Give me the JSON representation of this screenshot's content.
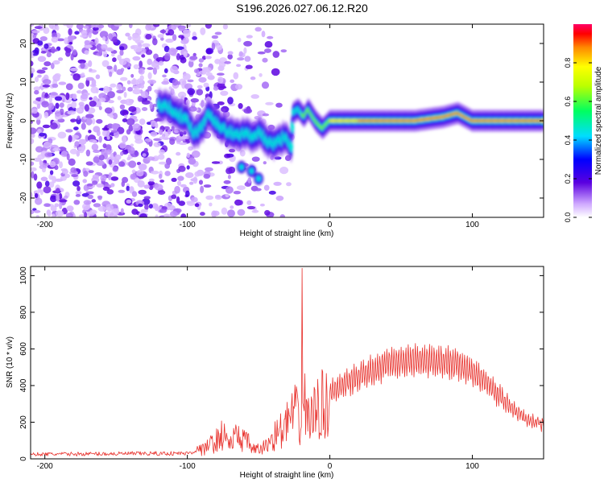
{
  "figure": {
    "title": "S196.2026.027.06.12.R20"
  },
  "chart_data": [
    {
      "type": "heatmap",
      "title": "S196.2026.027.06.12.R20",
      "xlabel": "Height of straight line (km)",
      "ylabel": "Frequency (Hz)",
      "xlim": [
        -210,
        150
      ],
      "ylim": [
        -25,
        25
      ],
      "x_ticks": [
        -200,
        -100,
        0,
        100
      ],
      "x_tick_labels": [
        "-200",
        "-100",
        "0",
        "100"
      ],
      "y_ticks": [
        -20,
        -10,
        0,
        10,
        20
      ],
      "y_tick_labels": [
        "-20",
        "-10",
        "0",
        "10",
        "20"
      ],
      "colorbar": {
        "label": "Normalized spectral amplitude",
        "range": [
          0,
          1
        ],
        "ticks": [
          0.0,
          0.2,
          0.4,
          0.6,
          0.8
        ],
        "tick_labels": [
          "0.0",
          "0.2",
          "0.4",
          "0.6",
          "0.8"
        ]
      },
      "ridge": {
        "description_points_km_hz": [
          [
            -118,
            4
          ],
          [
            -110,
            3
          ],
          [
            -100,
            0
          ],
          [
            -95,
            -3
          ],
          [
            -90,
            -2
          ],
          [
            -85,
            2
          ],
          [
            -80,
            0
          ],
          [
            -75,
            -2
          ],
          [
            -70,
            -3
          ],
          [
            -65,
            -4
          ],
          [
            -60,
            -3
          ],
          [
            -55,
            -4
          ],
          [
            -50,
            -3
          ],
          [
            -45,
            -5
          ],
          [
            -40,
            -6
          ],
          [
            -35,
            -5
          ],
          [
            -30,
            -4
          ],
          [
            -27,
            -7
          ],
          [
            -26,
            2
          ],
          [
            -22,
            3
          ],
          [
            -18,
            1
          ],
          [
            -15,
            3
          ],
          [
            -10,
            0
          ],
          [
            -5,
            -2
          ],
          [
            0,
            0
          ],
          [
            10,
            0
          ],
          [
            20,
            0
          ],
          [
            40,
            0
          ],
          [
            60,
            0
          ],
          [
            80,
            1
          ],
          [
            90,
            2
          ],
          [
            100,
            0
          ],
          [
            120,
            0
          ],
          [
            140,
            0
          ],
          [
            150,
            0
          ]
        ],
        "branch_points_km_hz": [
          [
            -62,
            -12
          ],
          [
            -55,
            -13
          ],
          [
            -50,
            -15
          ]
        ]
      }
    },
    {
      "type": "line",
      "xlabel": "Height of straight line (km)",
      "ylabel": "SNR (10 * v/v)",
      "xlim": [
        -210,
        150
      ],
      "ylim": [
        0,
        1050
      ],
      "x_ticks": [
        -200,
        -100,
        0,
        100
      ],
      "x_tick_labels": [
        "-200",
        "-100",
        "0",
        "100"
      ],
      "y_ticks": [
        0,
        200,
        400,
        600,
        800,
        1000
      ],
      "y_tick_labels": [
        "0",
        "200",
        "400",
        "600",
        "800",
        "1000"
      ],
      "series": [
        {
          "name": "SNR",
          "color": "#e8322d",
          "envelope_km_snr": [
            [
              -210,
              25
            ],
            [
              -150,
              28
            ],
            [
              -100,
              30
            ],
            [
              -90,
              60
            ],
            [
              -80,
              130
            ],
            [
              -75,
              180
            ],
            [
              -70,
              110
            ],
            [
              -65,
              170
            ],
            [
              -58,
              120
            ],
            [
              -52,
              60
            ],
            [
              -45,
              90
            ],
            [
              -38,
              180
            ],
            [
              -32,
              220
            ],
            [
              -28,
              300
            ],
            [
              -24,
              330
            ],
            [
              -21,
              250
            ],
            [
              -18,
              400
            ],
            [
              -15,
              320
            ],
            [
              -12,
              300
            ],
            [
              -8,
              380
            ],
            [
              -4,
              400
            ],
            [
              0,
              420
            ],
            [
              10,
              470
            ],
            [
              20,
              520
            ],
            [
              30,
              560
            ],
            [
              40,
              600
            ],
            [
              50,
              620
            ],
            [
              60,
              625
            ],
            [
              70,
              625
            ],
            [
              80,
              615
            ],
            [
              90,
              600
            ],
            [
              100,
              560
            ],
            [
              110,
              480
            ],
            [
              120,
              390
            ],
            [
              130,
              300
            ],
            [
              140,
              240
            ],
            [
              150,
              220
            ]
          ],
          "spike": {
            "x": -19.5,
            "y": 1040
          }
        }
      ]
    }
  ]
}
